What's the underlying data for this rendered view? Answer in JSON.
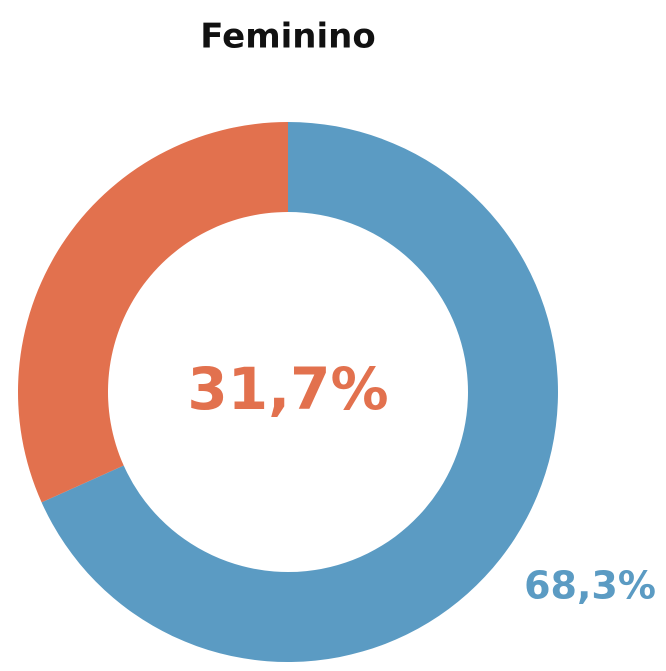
{
  "chart_data": {
    "type": "donut",
    "title": "Feminino",
    "values": [
      68.3,
      31.7
    ],
    "value_labels": [
      "68,3%",
      "31,7%"
    ],
    "colors": [
      "#5b9bc3",
      "#e2714e"
    ]
  }
}
